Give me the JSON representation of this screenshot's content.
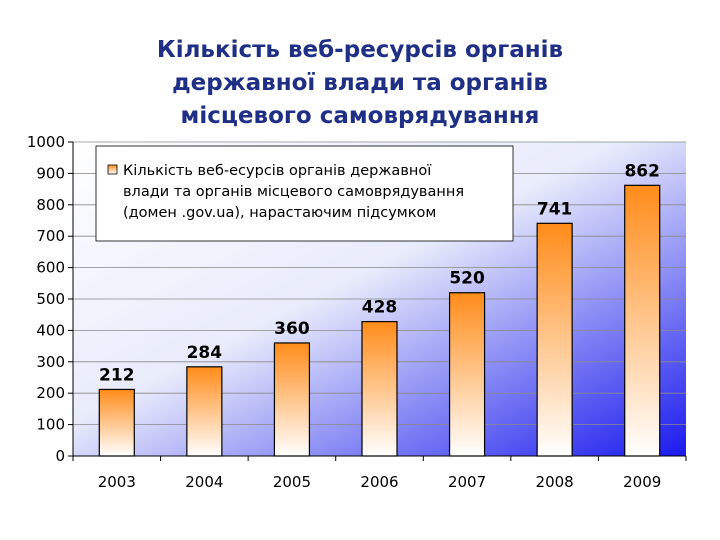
{
  "title_lines": [
    "Кількість веб-ресурсів органів",
    "державної влади та органів",
    "місцевого самоврядування"
  ],
  "colors": {
    "title": "#1f2f86",
    "plot_gradient_light": "#ffffff",
    "plot_gradient_dark": "#1a1aee",
    "bar_top": "#ff8c1a",
    "bar_bottom": "#ffffff",
    "bar_border": "#000000"
  },
  "chart_data": {
    "type": "bar",
    "categories": [
      "2003",
      "2004",
      "2005",
      "2006",
      "2007",
      "2008",
      "2009"
    ],
    "series": [
      {
        "name": "Кількість веб-есурсів органів державної влади та органів місцевого самоврядування (домен .gov.ua), нарастаючим підсумком",
        "values": [
          212,
          284,
          360,
          428,
          520,
          741,
          862
        ]
      }
    ],
    "legend_lines": [
      "Кількість веб-есурсів органів державної",
      "влади та органів місцевого самоврядування",
      "(домен .gov.ua), нарастаючим підсумком"
    ],
    "ylim": [
      0,
      1000
    ],
    "yticks": [
      0,
      100,
      200,
      300,
      400,
      500,
      600,
      700,
      800,
      900,
      1000
    ],
    "grid": true,
    "legend_position": "top-left",
    "data_labels": true
  }
}
